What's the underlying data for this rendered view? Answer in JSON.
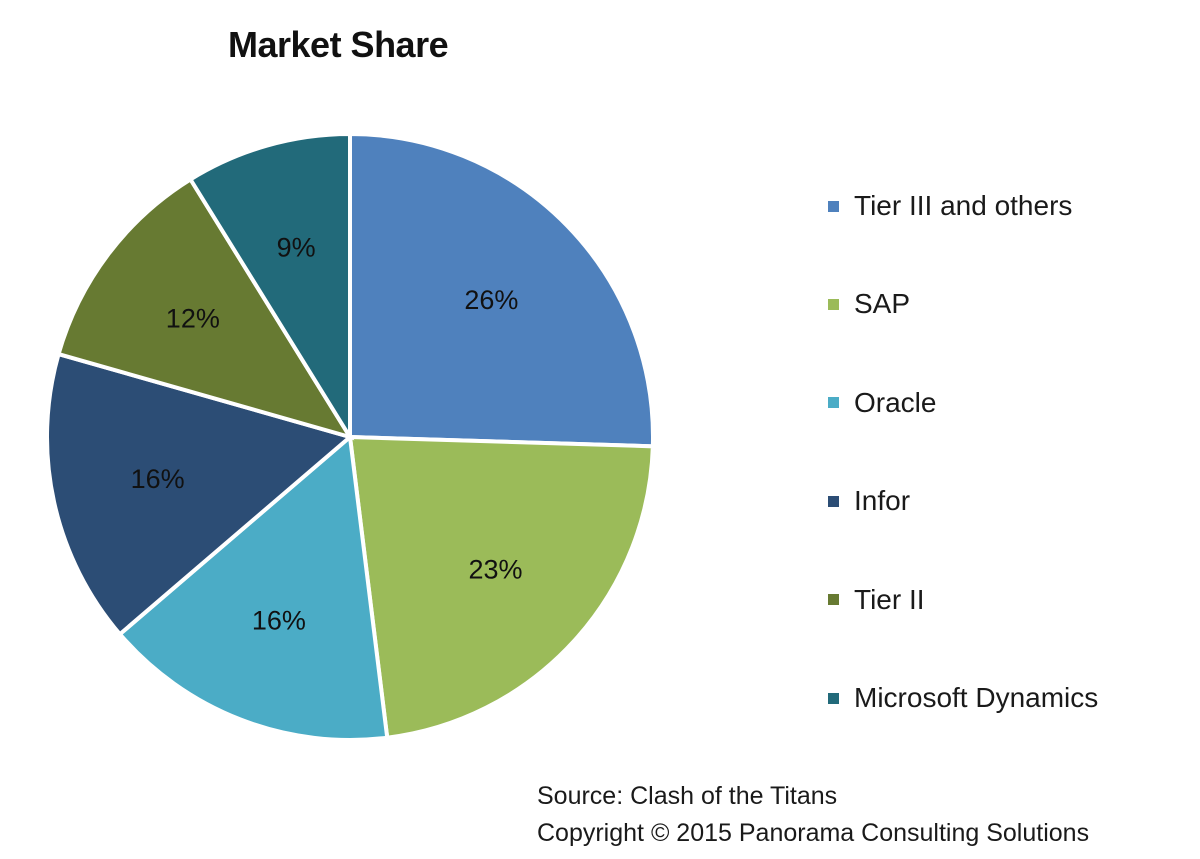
{
  "chart_data": {
    "type": "pie",
    "title": "Market Share",
    "categories": [
      "Tier III and others",
      "SAP",
      "Oracle",
      "Infor",
      "Tier II",
      "Microsoft Dynamics"
    ],
    "values": [
      26,
      23,
      16,
      16,
      12,
      9
    ],
    "data_labels": [
      "26%",
      "23%",
      "16%",
      "16%",
      "12%",
      "9%"
    ],
    "colors": [
      "#4f81bd",
      "#9bbb59",
      "#4bacc6",
      "#2c4d75",
      "#677a32",
      "#226a7a"
    ],
    "legend_placement": "right",
    "start_angle": "12 o'clock, clockwise"
  },
  "footer": {
    "source": "Source: Clash of the Titans",
    "copyright": "Copyright © 2015 Panorama Consulting Solutions"
  }
}
